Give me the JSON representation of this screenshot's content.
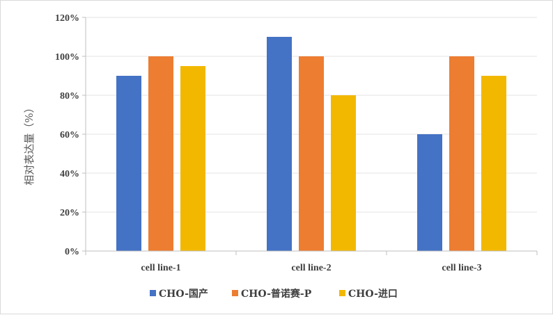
{
  "chart_data": {
    "type": "bar",
    "categories": [
      "cell line-1",
      "cell line-2",
      "cell line-3"
    ],
    "series": [
      {
        "name": "CHO-国产",
        "values": [
          90,
          110,
          60
        ],
        "color": "#4472c4"
      },
      {
        "name": "CHO-普诺赛-P",
        "values": [
          100,
          100,
          100
        ],
        "color": "#ed7d31"
      },
      {
        "name": "CHO-进口",
        "values": [
          95,
          80,
          90
        ],
        "color": "#f2b800"
      }
    ],
    "title": "",
    "xlabel": "",
    "ylabel": "相对表达量（%）",
    "ylim": [
      0,
      120
    ],
    "yticks": [
      0,
      20,
      40,
      60,
      80,
      100,
      120
    ],
    "ytick_labels": [
      "0%",
      "20%",
      "40%",
      "60%",
      "80%",
      "100%",
      "120%"
    ],
    "grid": true,
    "legend_position": "bottom"
  }
}
